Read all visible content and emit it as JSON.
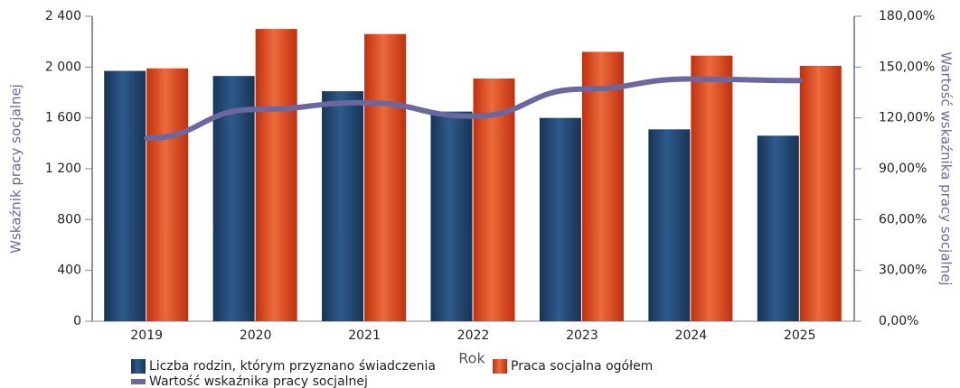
{
  "chart_data": {
    "type": "bar",
    "x_label": "Rok",
    "y_label": "Wskaźnik pracy socjalnej",
    "y2_label": "Wartość wskaźnika pracy socjalnej",
    "categories": [
      "2019",
      "2020",
      "2021",
      "2022",
      "2023",
      "2024",
      "2025"
    ],
    "series": [
      {
        "name": "Liczba rodzin, którym przyznano świadczenia",
        "color": "#1f4470",
        "type": "bar",
        "values": [
          1970,
          1930,
          1810,
          1650,
          1600,
          1510,
          1460
        ]
      },
      {
        "name": "Praca socjalna ogółem",
        "color": "#d9441c",
        "type": "bar",
        "values": [
          1990,
          2300,
          2260,
          1910,
          2120,
          2090,
          2010
        ]
      },
      {
        "name": "Wartość wskaźnika pracy socjalnej",
        "color": "#6b68a0",
        "type": "line",
        "axis": "y2",
        "values": [
          108,
          125,
          129,
          121,
          137,
          143,
          142
        ]
      }
    ],
    "ylim": [
      0,
      2400
    ],
    "yticks": [
      0,
      {
        "value": 400,
        "label": "400"
      },
      {
        "value": 800,
        "label": "800"
      },
      {
        "value": 1200,
        "label": "1 200"
      },
      {
        "value": 1600,
        "label": "1 600"
      },
      {
        "value": 2000,
        "label": "2 000"
      },
      {
        "value": 2400,
        "label": "2 400"
      }
    ],
    "y2lim": [
      0,
      180
    ],
    "y2ticks": [
      {
        "value": 0,
        "label": "0,00%"
      },
      {
        "value": 30,
        "label": "30,00%"
      },
      {
        "value": 60,
        "label": "60,00%"
      },
      {
        "value": 90,
        "label": "90,00%"
      },
      {
        "value": 120,
        "label": "120,00%"
      },
      {
        "value": 150,
        "label": "150,00%"
      },
      {
        "value": 180,
        "label": "180,00%"
      }
    ]
  }
}
